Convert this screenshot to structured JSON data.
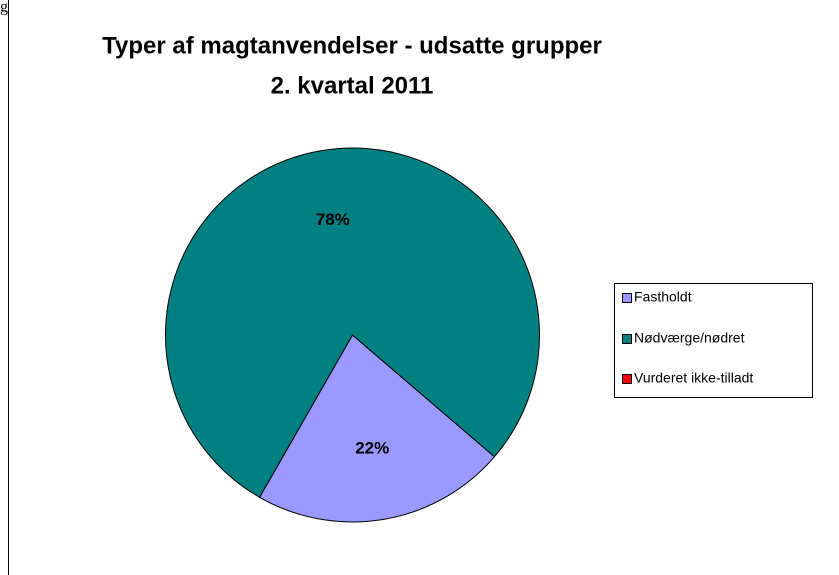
{
  "fragment": "g",
  "chart_data": {
    "type": "pie",
    "title": "Typer af magtanvendelser - udsatte grupper",
    "subtitle": "2. kvartal 2011",
    "categories": [
      "Fastholdt",
      "Nødværge/nødret",
      "Vurderet ikke-tilladt"
    ],
    "values": [
      22,
      78,
      0
    ],
    "value_labels": [
      "22%",
      "78%",
      null
    ],
    "colors": [
      "#9999ff",
      "#008080",
      "#ff0000"
    ],
    "legend": "right"
  }
}
